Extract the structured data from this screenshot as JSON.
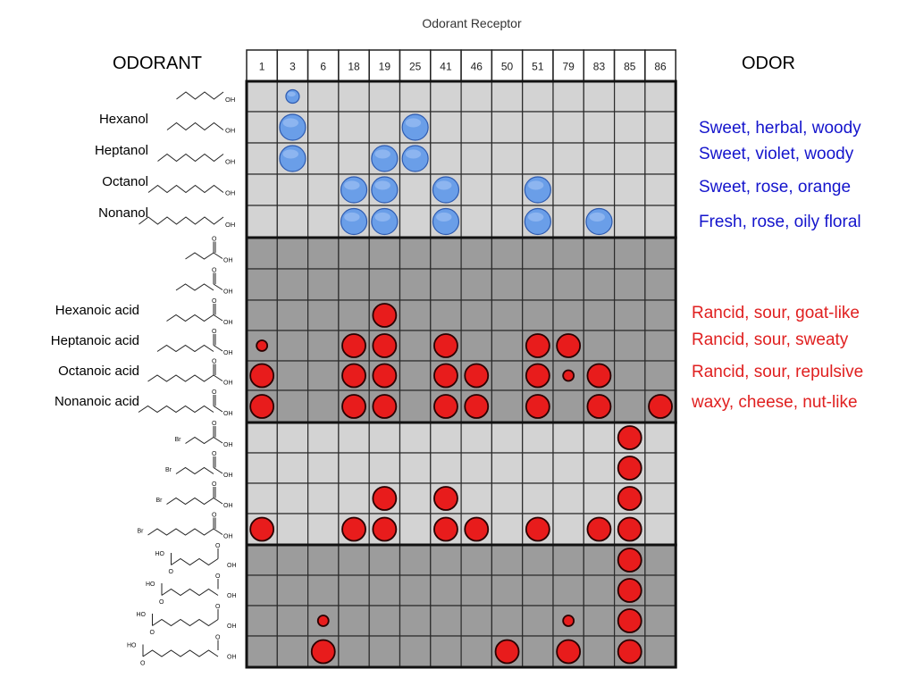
{
  "title": "Odorant Receptor",
  "left_heading": "ODORANT",
  "right_heading": "ODOR",
  "receptors": [
    "1",
    "3",
    "6",
    "18",
    "19",
    "25",
    "41",
    "46",
    "50",
    "51",
    "79",
    "83",
    "85",
    "86"
  ],
  "odorant_names": [
    "",
    "Hexanol",
    "Heptanol",
    "Octanol",
    "Nonanol",
    "",
    "",
    "Hexanoic acid",
    "Heptanoic acid",
    "Octanoic acid",
    "Nonanoic acid",
    "",
    "",
    "",
    "",
    "",
    "",
    "",
    ""
  ],
  "structure_atoms": {
    "hydroxyl": "OH",
    "bromine": "Br",
    "ho": "HO",
    "carbonyl_o": "O"
  },
  "odor_descriptions": [
    {
      "text": "Sweet, herbal, woody",
      "row": 1,
      "color": "blue"
    },
    {
      "text": "Sweet, violet, woody",
      "row": 2,
      "color": "blue"
    },
    {
      "text": "Sweet, rose, orange",
      "row": 3,
      "color": "blue"
    },
    {
      "text": "Fresh, rose, oily floral",
      "row": 4,
      "color": "blue"
    },
    {
      "text": "Rancid, sour, goat-like",
      "row": 7,
      "color": "red"
    },
    {
      "text": "Rancid, sour, sweaty",
      "row": 8,
      "color": "red"
    },
    {
      "text": "Rancid, sour, repulsive",
      "row": 9,
      "color": "red"
    },
    {
      "text": "waxy, cheese, nut-like",
      "row": 10,
      "color": "red"
    }
  ],
  "colors": {
    "alcohol_response": "#6a9ee8",
    "acid_response": "#e81c1c",
    "light_cell": "#d3d3d3",
    "dark_cell": "#9c9c9c",
    "border": "#111111"
  },
  "responses": [
    {
      "row": 0,
      "col": 1,
      "size": "small",
      "type": "blue"
    },
    {
      "row": 1,
      "col": 1,
      "size": "large",
      "type": "blue"
    },
    {
      "row": 1,
      "col": 5,
      "size": "large",
      "type": "blue"
    },
    {
      "row": 2,
      "col": 1,
      "size": "large",
      "type": "blue"
    },
    {
      "row": 2,
      "col": 4,
      "size": "large",
      "type": "blue"
    },
    {
      "row": 2,
      "col": 5,
      "size": "large",
      "type": "blue"
    },
    {
      "row": 3,
      "col": 3,
      "size": "large",
      "type": "blue"
    },
    {
      "row": 3,
      "col": 4,
      "size": "large",
      "type": "blue"
    },
    {
      "row": 3,
      "col": 6,
      "size": "large",
      "type": "blue"
    },
    {
      "row": 3,
      "col": 9,
      "size": "large",
      "type": "blue"
    },
    {
      "row": 4,
      "col": 3,
      "size": "large",
      "type": "blue"
    },
    {
      "row": 4,
      "col": 4,
      "size": "large",
      "type": "blue"
    },
    {
      "row": 4,
      "col": 6,
      "size": "large",
      "type": "blue"
    },
    {
      "row": 4,
      "col": 9,
      "size": "large",
      "type": "blue"
    },
    {
      "row": 4,
      "col": 11,
      "size": "large",
      "type": "blue"
    },
    {
      "row": 7,
      "col": 4,
      "size": "large",
      "type": "red"
    },
    {
      "row": 8,
      "col": 0,
      "size": "small",
      "type": "red"
    },
    {
      "row": 8,
      "col": 3,
      "size": "large",
      "type": "red"
    },
    {
      "row": 8,
      "col": 4,
      "size": "large",
      "type": "red"
    },
    {
      "row": 8,
      "col": 6,
      "size": "large",
      "type": "red"
    },
    {
      "row": 8,
      "col": 9,
      "size": "large",
      "type": "red"
    },
    {
      "row": 8,
      "col": 10,
      "size": "large",
      "type": "red"
    },
    {
      "row": 9,
      "col": 0,
      "size": "large",
      "type": "red"
    },
    {
      "row": 9,
      "col": 3,
      "size": "large",
      "type": "red"
    },
    {
      "row": 9,
      "col": 4,
      "size": "large",
      "type": "red"
    },
    {
      "row": 9,
      "col": 6,
      "size": "large",
      "type": "red"
    },
    {
      "row": 9,
      "col": 7,
      "size": "large",
      "type": "red"
    },
    {
      "row": 9,
      "col": 9,
      "size": "large",
      "type": "red"
    },
    {
      "row": 9,
      "col": 10,
      "size": "small",
      "type": "red"
    },
    {
      "row": 9,
      "col": 11,
      "size": "large",
      "type": "red"
    },
    {
      "row": 10,
      "col": 0,
      "size": "large",
      "type": "red"
    },
    {
      "row": 10,
      "col": 3,
      "size": "large",
      "type": "red"
    },
    {
      "row": 10,
      "col": 4,
      "size": "large",
      "type": "red"
    },
    {
      "row": 10,
      "col": 6,
      "size": "large",
      "type": "red"
    },
    {
      "row": 10,
      "col": 7,
      "size": "large",
      "type": "red"
    },
    {
      "row": 10,
      "col": 9,
      "size": "large",
      "type": "red"
    },
    {
      "row": 10,
      "col": 11,
      "size": "large",
      "type": "red"
    },
    {
      "row": 10,
      "col": 13,
      "size": "large",
      "type": "red"
    },
    {
      "row": 11,
      "col": 12,
      "size": "large",
      "type": "red"
    },
    {
      "row": 12,
      "col": 12,
      "size": "large",
      "type": "red"
    },
    {
      "row": 13,
      "col": 4,
      "size": "large",
      "type": "red"
    },
    {
      "row": 13,
      "col": 6,
      "size": "large",
      "type": "red"
    },
    {
      "row": 13,
      "col": 12,
      "size": "large",
      "type": "red"
    },
    {
      "row": 14,
      "col": 0,
      "size": "large",
      "type": "red"
    },
    {
      "row": 14,
      "col": 3,
      "size": "large",
      "type": "red"
    },
    {
      "row": 14,
      "col": 4,
      "size": "large",
      "type": "red"
    },
    {
      "row": 14,
      "col": 6,
      "size": "large",
      "type": "red"
    },
    {
      "row": 14,
      "col": 7,
      "size": "large",
      "type": "red"
    },
    {
      "row": 14,
      "col": 9,
      "size": "large",
      "type": "red"
    },
    {
      "row": 14,
      "col": 11,
      "size": "large",
      "type": "red"
    },
    {
      "row": 14,
      "col": 12,
      "size": "large",
      "type": "red"
    },
    {
      "row": 15,
      "col": 12,
      "size": "large",
      "type": "red"
    },
    {
      "row": 16,
      "col": 12,
      "size": "large",
      "type": "red"
    },
    {
      "row": 17,
      "col": 2,
      "size": "small",
      "type": "red"
    },
    {
      "row": 17,
      "col": 10,
      "size": "small",
      "type": "red"
    },
    {
      "row": 17,
      "col": 12,
      "size": "large",
      "type": "red"
    },
    {
      "row": 18,
      "col": 2,
      "size": "large",
      "type": "red"
    },
    {
      "row": 18,
      "col": 8,
      "size": "large",
      "type": "red"
    },
    {
      "row": 18,
      "col": 10,
      "size": "large",
      "type": "red"
    },
    {
      "row": 18,
      "col": 12,
      "size": "large",
      "type": "red"
    }
  ]
}
